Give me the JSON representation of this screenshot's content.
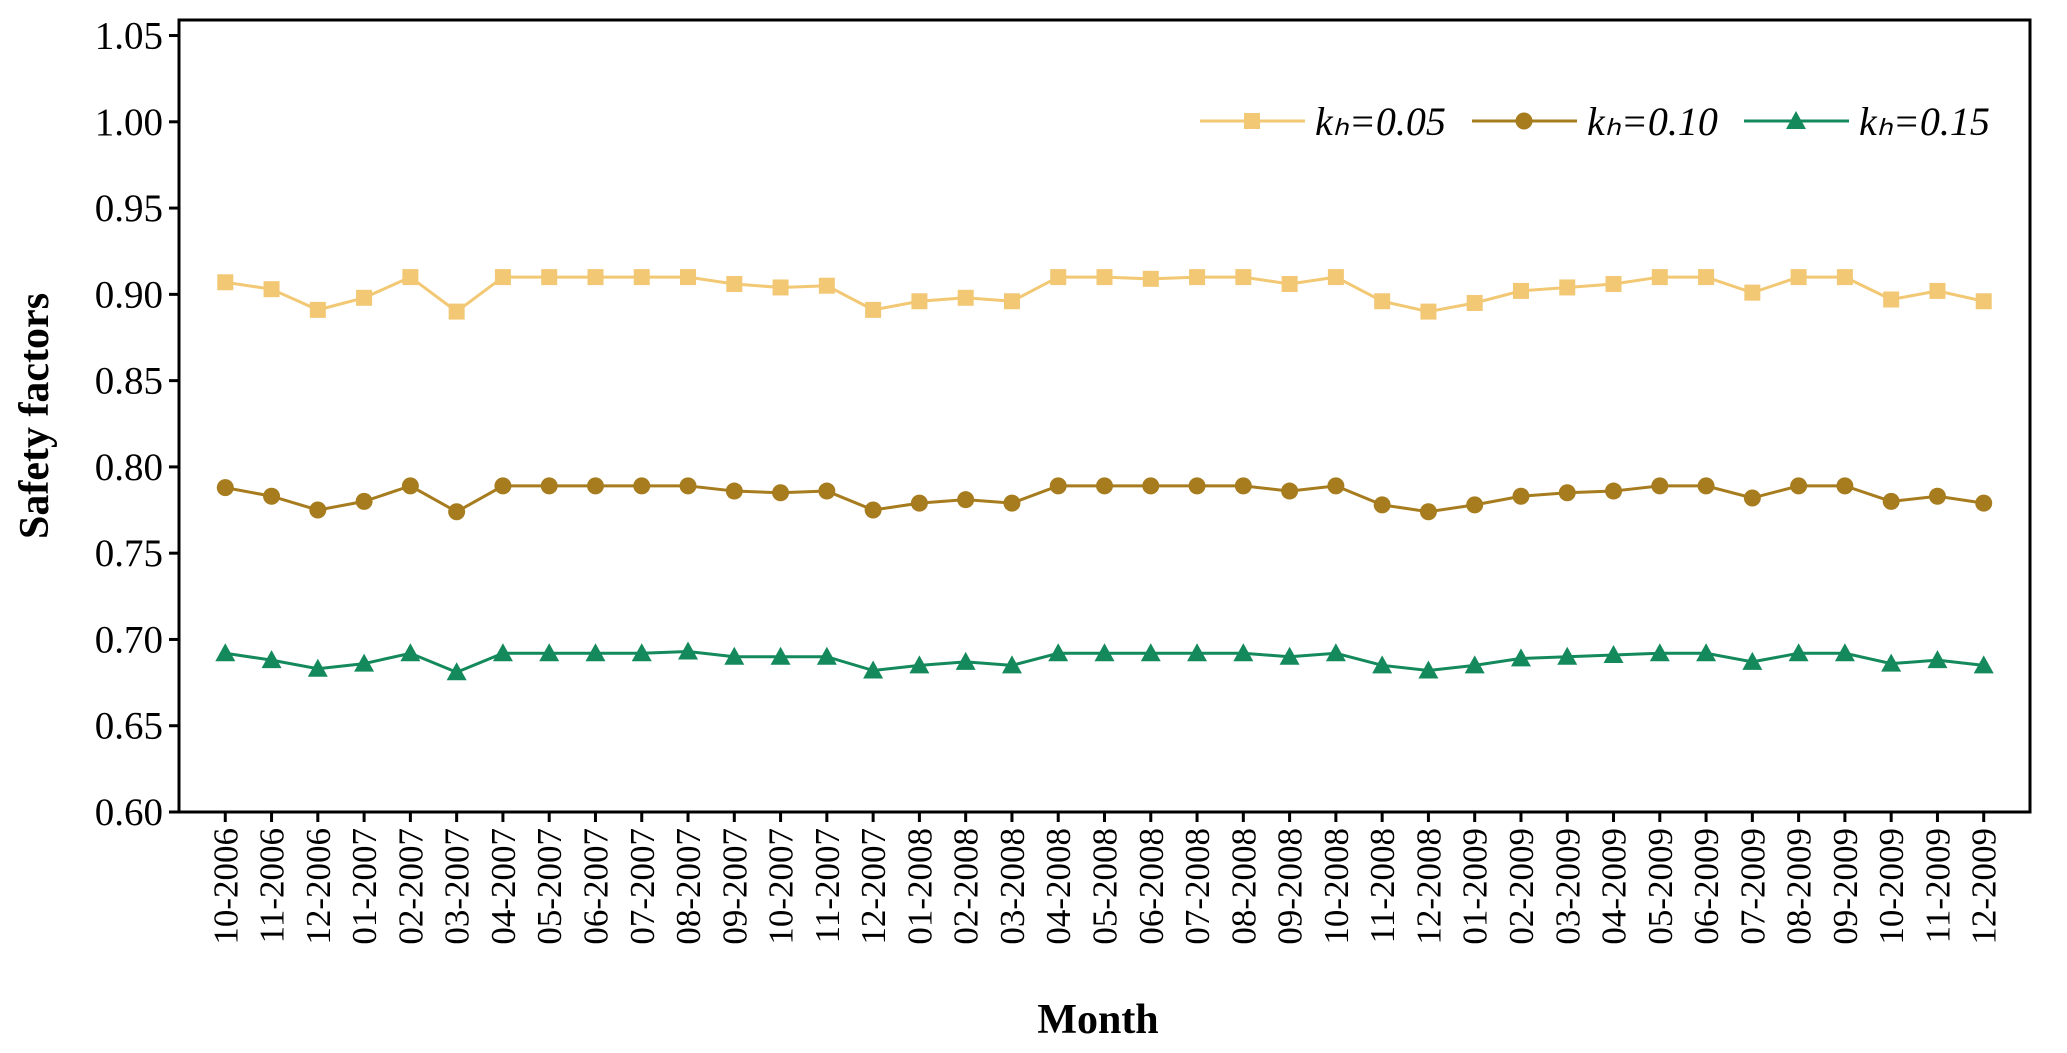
{
  "chart_data": {
    "type": "line",
    "x_label": "Month",
    "y_label": "Safety factors",
    "categories": [
      "10-2006",
      "11-2006",
      "12-2006",
      "01-2007",
      "02-2007",
      "03-2007",
      "04-2007",
      "05-2007",
      "06-2007",
      "07-2007",
      "08-2007",
      "09-2007",
      "10-2007",
      "11-2007",
      "12-2007",
      "01-2008",
      "02-2008",
      "03-2008",
      "04-2008",
      "05-2008",
      "06-2008",
      "07-2008",
      "08-2008",
      "09-2008",
      "10-2008",
      "11-2008",
      "12-2008",
      "01-2009",
      "02-2009",
      "03-2009",
      "04-2009",
      "05-2009",
      "06-2009",
      "07-2009",
      "08-2009",
      "09-2009",
      "10-2009",
      "11-2009",
      "12-2009"
    ],
    "series": [
      {
        "name": "kₕ=0.05",
        "color": "#f2c874",
        "marker": "square",
        "values": [
          0.907,
          0.903,
          0.891,
          0.898,
          0.91,
          0.89,
          0.91,
          0.91,
          0.91,
          0.91,
          0.91,
          0.906,
          0.904,
          0.905,
          0.891,
          0.896,
          0.898,
          0.896,
          0.91,
          0.91,
          0.909,
          0.91,
          0.91,
          0.906,
          0.91,
          0.896,
          0.89,
          0.895,
          0.902,
          0.904,
          0.906,
          0.91,
          0.91,
          0.901,
          0.91,
          0.91,
          0.897,
          0.902,
          0.896
        ]
      },
      {
        "name": "kₕ=0.10",
        "color": "#a67c1e",
        "marker": "circle",
        "values": [
          0.788,
          0.783,
          0.775,
          0.78,
          0.789,
          0.774,
          0.789,
          0.789,
          0.789,
          0.789,
          0.789,
          0.786,
          0.785,
          0.786,
          0.775,
          0.779,
          0.781,
          0.779,
          0.789,
          0.789,
          0.789,
          0.789,
          0.789,
          0.786,
          0.789,
          0.778,
          0.774,
          0.778,
          0.783,
          0.785,
          0.786,
          0.789,
          0.789,
          0.782,
          0.789,
          0.789,
          0.78,
          0.783,
          0.779
        ]
      },
      {
        "name": "kₕ=0.15",
        "color": "#148a5c",
        "marker": "triangle",
        "values": [
          0.692,
          0.688,
          0.683,
          0.686,
          0.692,
          0.681,
          0.692,
          0.692,
          0.692,
          0.692,
          0.693,
          0.69,
          0.69,
          0.69,
          0.682,
          0.685,
          0.687,
          0.685,
          0.692,
          0.692,
          0.692,
          0.692,
          0.692,
          0.69,
          0.692,
          0.685,
          0.682,
          0.685,
          0.689,
          0.69,
          0.691,
          0.692,
          0.692,
          0.687,
          0.692,
          0.692,
          0.686,
          0.688,
          0.685
        ]
      }
    ],
    "ylim": [
      0.6,
      1.059
    ],
    "yticks": [
      {
        "value": 0.6,
        "label": "0.60"
      },
      {
        "value": 0.65,
        "label": "0.65"
      },
      {
        "value": 0.7,
        "label": "0.70"
      },
      {
        "value": 0.75,
        "label": "0.75"
      },
      {
        "value": 0.8,
        "label": "0.80"
      },
      {
        "value": 0.85,
        "label": "0.85"
      },
      {
        "value": 0.9,
        "label": "0.90"
      },
      {
        "value": 0.95,
        "label": "0.95"
      },
      {
        "value": 1.0,
        "label": "1.00"
      },
      {
        "value": 1.05,
        "label": "1.05"
      }
    ],
    "grid": false,
    "legend": "top-right"
  }
}
